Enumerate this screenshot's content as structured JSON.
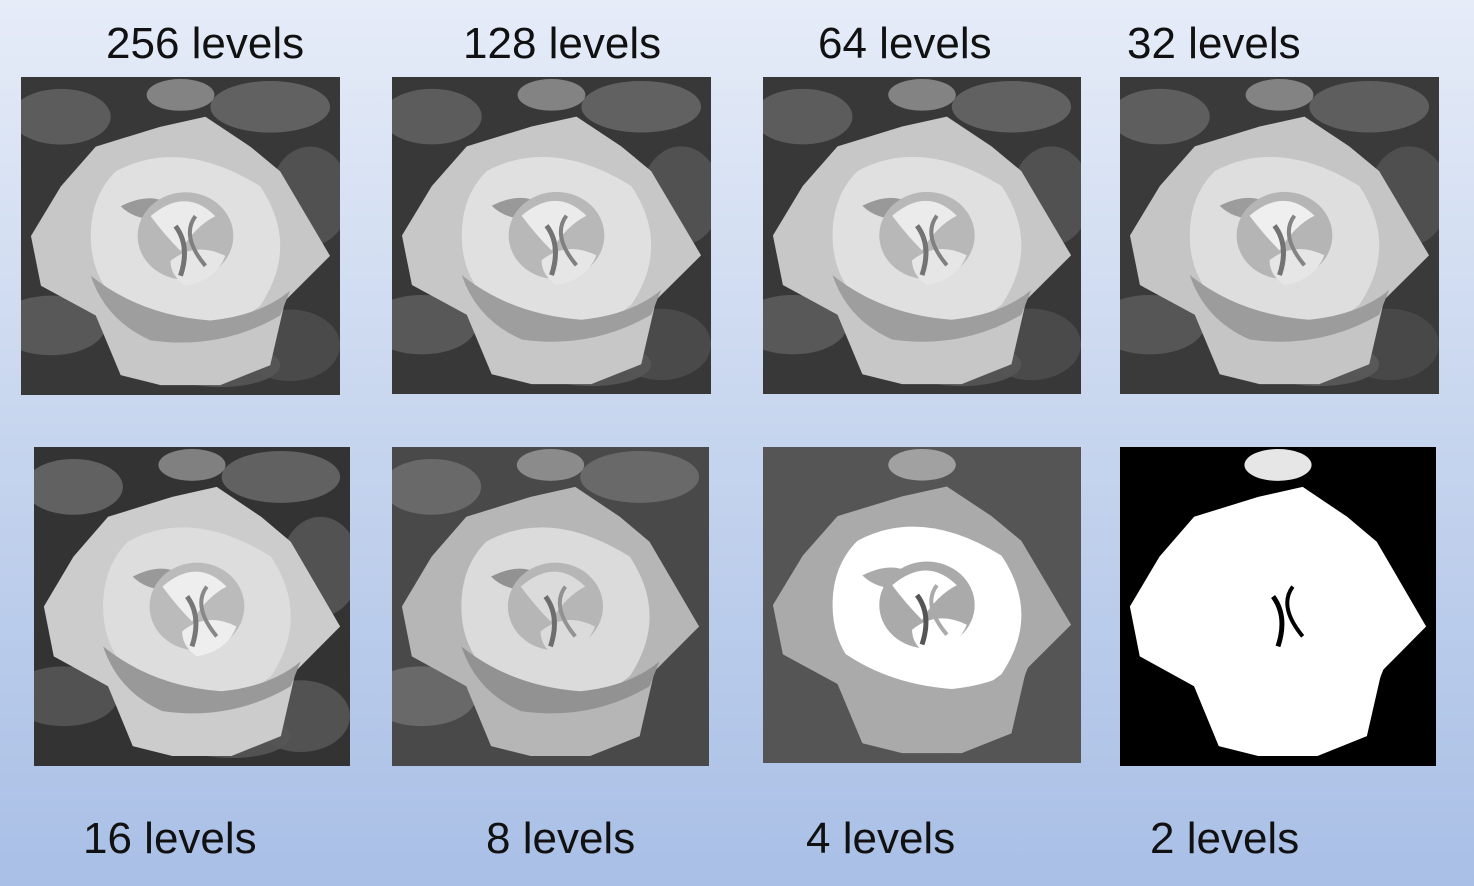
{
  "figure": {
    "panels": [
      {
        "label": "256 levels",
        "levels": 256
      },
      {
        "label": "128 levels",
        "levels": 128
      },
      {
        "label": "64 levels",
        "levels": 64
      },
      {
        "label": "32 levels",
        "levels": 32
      },
      {
        "label": "16 levels",
        "levels": 16
      },
      {
        "label": "8 levels",
        "levels": 8
      },
      {
        "label": "4 levels",
        "levels": 4
      },
      {
        "label": "2 levels",
        "levels": 2
      }
    ]
  }
}
